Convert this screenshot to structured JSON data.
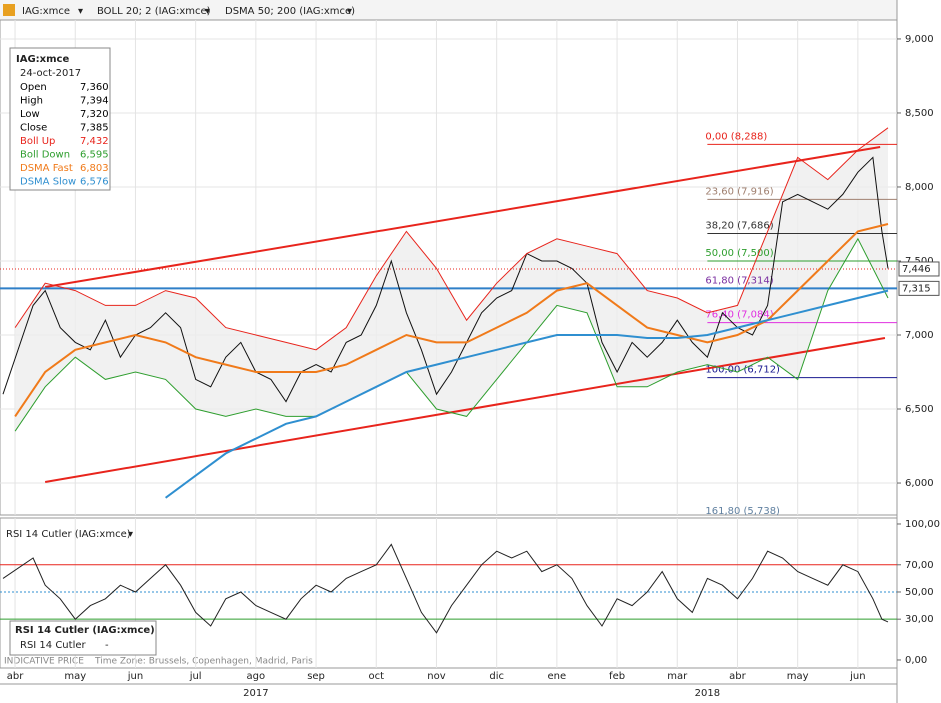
{
  "toolbar": [
    "IAG:xmce",
    "BOLL 20; 2 (IAG:xmce)",
    "DSMA 50; 200 (IAG:xmce)"
  ],
  "footer": "INDICATIVE PRICE",
  "timezone": "Time Zone: Brussels, Copenhagen, Madrid, Paris",
  "chart_data": [
    {
      "type": "line",
      "xlim": [
        0.25,
        15.15
      ],
      "ylim": [
        5.784,
        9.128
      ],
      "xticks": [
        {
          "value": 0.5,
          "label": "abr"
        },
        {
          "value": 1.5,
          "label": "may"
        },
        {
          "value": 2.5,
          "label": "jun"
        },
        {
          "value": 3.5,
          "label": "jul"
        },
        {
          "value": 4.5,
          "label": "ago"
        },
        {
          "value": 5.5,
          "label": "sep"
        },
        {
          "value": 6.5,
          "label": "oct"
        },
        {
          "value": 7.5,
          "label": "nov"
        },
        {
          "value": 8.5,
          "label": "dic"
        },
        {
          "value": 9.5,
          "label": "ene"
        },
        {
          "value": 10.5,
          "label": "feb"
        },
        {
          "value": 11.5,
          "label": "mar"
        },
        {
          "value": 12.5,
          "label": "abr"
        },
        {
          "value": 13.5,
          "label": "may"
        },
        {
          "value": 14.5,
          "label": "jun"
        }
      ],
      "years": [
        {
          "value": 4.5,
          "label": "2017"
        },
        {
          "value": 12,
          "label": "2018"
        }
      ],
      "yticks": [
        {
          "value": 6,
          "label": "6,000"
        },
        {
          "value": 6.5,
          "label": "6,500"
        },
        {
          "value": 7,
          "label": "7,000"
        },
        {
          "value": 7.5,
          "label": "7,500"
        },
        {
          "value": 8,
          "label": "8,000"
        },
        {
          "value": 8.5,
          "label": "8,500"
        },
        {
          "value": 9,
          "label": "9,000"
        }
      ],
      "grid": true,
      "info_box": {
        "title": "IAG:xmce",
        "date": "24-oct-2017",
        "rows": [
          {
            "name": "Open",
            "value": "7,360",
            "color": "#000000"
          },
          {
            "name": "High",
            "value": "7,394",
            "color": "#000000"
          },
          {
            "name": "Low",
            "value": "7,320",
            "color": "#000000"
          },
          {
            "name": "Close",
            "value": "7,385",
            "color": "#000000"
          },
          {
            "name": "Boll Up",
            "value": "7,432",
            "color": "#e8241c"
          },
          {
            "name": "Boll Down",
            "value": "6,595",
            "color": "#2e9e2e"
          },
          {
            "name": "DSMA Fast",
            "value": "6,803",
            "color": "#f07a1a"
          },
          {
            "name": "DSMA Slow",
            "value": "6,576",
            "color": "#2f8fd0"
          }
        ]
      },
      "series": [
        {
          "name": "IAG:xmce",
          "color": "#111111",
          "width": 1,
          "x": [
            0.3,
            0.8,
            1,
            1.25,
            1.5,
            1.75,
            2,
            2.25,
            2.5,
            2.75,
            3,
            3.25,
            3.5,
            3.75,
            4,
            4.25,
            4.5,
            4.75,
            5,
            5.25,
            5.5,
            5.75,
            6,
            6.25,
            6.5,
            6.75,
            7,
            7.25,
            7.5,
            7.75,
            8,
            8.25,
            8.5,
            8.75,
            9,
            9.25,
            9.5,
            9.75,
            10,
            10.25,
            10.5,
            10.75,
            11,
            11.25,
            11.5,
            11.75,
            12,
            12.25,
            12.5,
            12.75,
            13,
            13.25,
            13.5,
            13.75,
            14,
            14.25,
            14.5,
            14.75,
            14.9,
            15
          ],
          "values": [
            6.6,
            7.2,
            7.3,
            7.05,
            6.95,
            6.9,
            7.1,
            6.85,
            7.0,
            7.05,
            7.15,
            7.05,
            6.7,
            6.65,
            6.85,
            6.95,
            6.75,
            6.7,
            6.55,
            6.75,
            6.8,
            6.75,
            6.95,
            7.0,
            7.2,
            7.5,
            7.15,
            6.9,
            6.6,
            6.75,
            6.95,
            7.15,
            7.25,
            7.3,
            7.55,
            7.5,
            7.5,
            7.45,
            7.35,
            6.95,
            6.75,
            6.95,
            6.85,
            6.95,
            7.1,
            6.95,
            6.85,
            7.15,
            7.05,
            7.0,
            7.2,
            7.9,
            7.95,
            7.9,
            7.85,
            7.95,
            8.1,
            8.2,
            7.7,
            7.45
          ]
        },
        {
          "name": "Boll Up",
          "color": "#e8241c",
          "width": 1,
          "x": [
            0.5,
            1,
            1.5,
            2,
            2.5,
            3,
            3.5,
            4,
            4.5,
            5,
            5.5,
            6,
            6.5,
            7,
            7.5,
            8,
            8.5,
            9,
            9.5,
            10,
            10.5,
            11,
            11.5,
            12,
            12.5,
            13,
            13.5,
            14,
            14.5,
            15
          ],
          "values": [
            7.05,
            7.35,
            7.3,
            7.2,
            7.2,
            7.3,
            7.25,
            7.05,
            7.0,
            6.95,
            6.9,
            7.05,
            7.4,
            7.7,
            7.45,
            7.1,
            7.35,
            7.55,
            7.65,
            7.6,
            7.55,
            7.3,
            7.25,
            7.15,
            7.2,
            7.7,
            8.2,
            8.05,
            8.25,
            8.4
          ]
        },
        {
          "name": "Boll Down",
          "color": "#2e9e2e",
          "width": 1,
          "x": [
            0.5,
            1,
            1.5,
            2,
            2.5,
            3,
            3.5,
            4,
            4.5,
            5,
            5.5,
            6,
            6.5,
            7,
            7.5,
            8,
            8.5,
            9,
            9.5,
            10,
            10.5,
            11,
            11.5,
            12,
            12.5,
            13,
            13.5,
            14,
            14.5,
            15
          ],
          "values": [
            6.35,
            6.65,
            6.85,
            6.7,
            6.75,
            6.7,
            6.5,
            6.45,
            6.5,
            6.45,
            6.45,
            6.55,
            6.65,
            6.75,
            6.5,
            6.45,
            6.7,
            6.95,
            7.2,
            7.15,
            6.65,
            6.65,
            6.75,
            6.8,
            6.75,
            6.85,
            6.7,
            7.3,
            7.65,
            7.25
          ]
        },
        {
          "name": "DSMA Fast",
          "color": "#f07a1a",
          "width": 2,
          "x": [
            0.5,
            1,
            1.5,
            2,
            2.5,
            3,
            3.5,
            4,
            4.5,
            5,
            5.5,
            6,
            6.5,
            7,
            7.5,
            8,
            8.5,
            9,
            9.5,
            10,
            10.5,
            11,
            11.5,
            12,
            12.5,
            13,
            13.5,
            14,
            14.5,
            15
          ],
          "values": [
            6.45,
            6.75,
            6.9,
            6.95,
            7.0,
            6.95,
            6.85,
            6.8,
            6.75,
            6.75,
            6.75,
            6.8,
            6.9,
            7.0,
            6.95,
            6.95,
            7.05,
            7.15,
            7.3,
            7.35,
            7.2,
            7.05,
            7.0,
            6.95,
            7.0,
            7.1,
            7.3,
            7.5,
            7.7,
            7.75
          ]
        },
        {
          "name": "DSMA Slow",
          "color": "#2f8fd0",
          "width": 2,
          "x": [
            0.5,
            1,
            1.5,
            2,
            2.5,
            3,
            3.5,
            4,
            4.5,
            5,
            5.5,
            6,
            6.5,
            7,
            7.5,
            8,
            8.5,
            9,
            9.5,
            10,
            10.5,
            11,
            11.5,
            12,
            12.5,
            13,
            13.5,
            14,
            14.5,
            15
          ],
          "values": [
            null,
            null,
            null,
            null,
            null,
            5.9,
            6.05,
            6.2,
            6.3,
            6.4,
            6.45,
            6.55,
            6.65,
            6.75,
            6.8,
            6.85,
            6.9,
            6.95,
            7.0,
            7.0,
            7.0,
            6.98,
            6.98,
            7.0,
            7.05,
            7.1,
            7.15,
            7.2,
            7.25,
            7.3
          ]
        }
      ],
      "trend_lines": [
        {
          "x": [
            1,
            14.87
          ],
          "y": [
            7.324,
            8.27
          ],
          "color": "#e8241c"
        },
        {
          "x": [
            1,
            14.95
          ],
          "y": [
            6.007,
            6.98
          ],
          "color": "#e8241c"
        }
      ],
      "horizontal_line": {
        "value": 7.315,
        "label": "7,315",
        "color": "#2f7fc8"
      },
      "last_price": {
        "value": 7.446,
        "label": "7,446",
        "color": "#e8241c"
      },
      "fibonacci": {
        "start": 12,
        "levels": [
          {
            "value": 8.288,
            "label": "0,00 (8,288)",
            "color": "#e8241c"
          },
          {
            "value": 7.916,
            "label": "23,60 (7,916)",
            "color": "#a08070"
          },
          {
            "value": 7.686,
            "label": "38,20 (7,686)",
            "color": "#333333"
          },
          {
            "value": 7.5,
            "label": "50,00 (7,500)",
            "color": "#2e9e2e"
          },
          {
            "value": 7.314,
            "label": "61,80 (7,314)",
            "color": "#7a2ea0"
          },
          {
            "value": 7.084,
            "label": "76,40 (7,084)",
            "color": "#e030e0"
          },
          {
            "value": 6.712,
            "label": "100,00 (6,712)",
            "color": "#1a1a90"
          },
          {
            "value": 5.738,
            "label": "161,80 (5,738)",
            "color": "#6080a0"
          }
        ]
      }
    },
    {
      "type": "line",
      "title": "RSI 14 Cutler (IAG:xmce)",
      "xlim": [
        0.25,
        15.15
      ],
      "ylim": [
        -5.9,
        104.4
      ],
      "yticks": [
        {
          "value": 0,
          "label": "0,00"
        },
        {
          "value": 30,
          "label": "30,00"
        },
        {
          "value": 50,
          "label": "50,00"
        },
        {
          "value": 70,
          "label": "70,00"
        },
        {
          "value": 100,
          "label": "100,00"
        }
      ],
      "levels": [
        {
          "value": 70,
          "color": "#e8241c"
        },
        {
          "value": 50,
          "color": "#2f8fd0"
        },
        {
          "value": 30,
          "color": "#2e9e2e"
        }
      ],
      "legend": {
        "title": "RSI 14 Cutler (IAG:xmce)",
        "name": "RSI 14 Cutler",
        "value": "-"
      },
      "series": [
        {
          "name": "RSI 14 Cutler",
          "color": "#222222",
          "width": 1,
          "x": [
            0.3,
            0.8,
            1,
            1.25,
            1.5,
            1.75,
            2,
            2.25,
            2.5,
            2.75,
            3,
            3.25,
            3.5,
            3.75,
            4,
            4.25,
            4.5,
            4.75,
            5,
            5.25,
            5.5,
            5.75,
            6,
            6.25,
            6.5,
            6.75,
            7,
            7.25,
            7.5,
            7.75,
            8,
            8.25,
            8.5,
            8.75,
            9,
            9.25,
            9.5,
            9.75,
            10,
            10.25,
            10.5,
            10.75,
            11,
            11.25,
            11.5,
            11.75,
            12,
            12.25,
            12.5,
            12.75,
            13,
            13.25,
            13.5,
            13.75,
            14,
            14.25,
            14.5,
            14.75,
            14.9,
            15
          ],
          "values": [
            60,
            75,
            55,
            45,
            30,
            40,
            45,
            55,
            50,
            60,
            70,
            55,
            35,
            25,
            45,
            50,
            40,
            35,
            30,
            45,
            55,
            50,
            60,
            65,
            70,
            85,
            60,
            35,
            20,
            40,
            55,
            70,
            80,
            75,
            80,
            65,
            70,
            60,
            40,
            25,
            45,
            40,
            50,
            65,
            45,
            35,
            60,
            55,
            45,
            60,
            80,
            75,
            65,
            60,
            55,
            70,
            65,
            45,
            30,
            28
          ]
        }
      ]
    }
  ]
}
